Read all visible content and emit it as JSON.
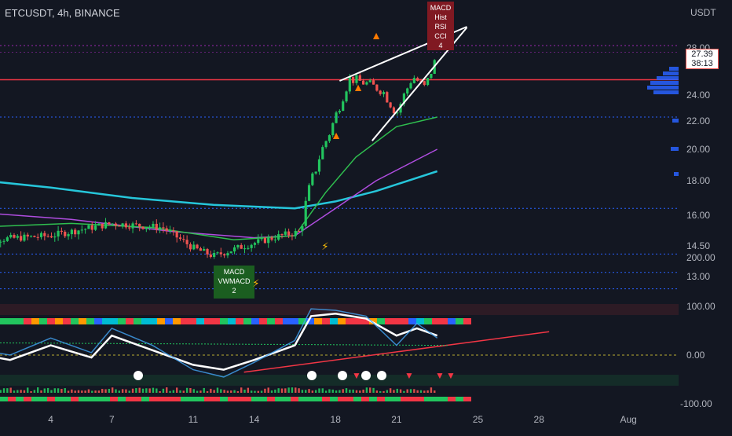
{
  "header": {
    "title": "ETCUSDT, 4h, BINANCE"
  },
  "colors": {
    "background": "#131722",
    "axis_text": "#b2b5be",
    "up": "#22c55e",
    "down": "#ef5350",
    "ema_cyan": "#26c6da",
    "ema_purple": "#b04de0",
    "ema_green": "#2fbf4f",
    "hline_red": "#f23645",
    "hline_blue": "#2962ff",
    "hline_purple": "#9c27b0",
    "wedge": "#ffffff",
    "rsi_line": "#ffffff",
    "rsi_fast": "#42a5f5"
  },
  "price_axis": {
    "currency": "USDT",
    "ticks": [
      "28.00",
      "24.00",
      "22.00",
      "20.00",
      "18.00",
      "16.00",
      "14.50",
      "13.00"
    ]
  },
  "osc_axis": {
    "ticks": [
      "200.00",
      "100.00",
      "0.00",
      "-100.00"
    ]
  },
  "time_axis": {
    "ticks": [
      "4",
      "7",
      "11",
      "14",
      "18",
      "21",
      "25",
      "28",
      "Aug"
    ]
  },
  "last_price": {
    "value": "27.39",
    "countdown": "38:13"
  },
  "annotations": {
    "top_signal": [
      "MACD",
      "Hist",
      "RSI",
      "CCI",
      "4"
    ],
    "bottom_signal": [
      "MACD",
      "VWMACD",
      "2"
    ]
  },
  "chart_data": [
    {
      "type": "candlestick",
      "title": "ETCUSDT, 4h, BINANCE",
      "ylabel": "USDT",
      "x_ticks": [
        "4",
        "7",
        "11",
        "14",
        "18",
        "21",
        "25",
        "28",
        "Aug"
      ],
      "ylim": [
        12.2,
        29.5
      ],
      "close_path": [
        [
          1,
          14.8
        ],
        [
          4,
          15.0
        ],
        [
          7,
          15.6
        ],
        [
          9.5,
          15.4
        ],
        [
          11,
          14.4
        ],
        [
          12,
          14.0
        ],
        [
          13.5,
          14.5
        ],
        [
          15.3,
          15.0
        ],
        [
          16.3,
          15.2
        ],
        [
          16.6,
          17.0
        ],
        [
          17.2,
          19.5
        ],
        [
          17.8,
          21.5
        ],
        [
          18.7,
          25.4
        ],
        [
          19.5,
          25.0
        ],
        [
          20.3,
          24.4
        ],
        [
          21,
          22.6
        ],
        [
          21.8,
          25.6
        ],
        [
          22.4,
          24.6
        ],
        [
          23,
          27.39
        ]
      ],
      "horizontal_levels": [
        {
          "value": 28.2,
          "color": "#9c27b0",
          "style": "dotted"
        },
        {
          "value": 25.3,
          "color": "#f23645",
          "style": "solid"
        },
        {
          "value": 22.3,
          "color": "#2962ff",
          "style": "dotted"
        },
        {
          "value": 16.4,
          "color": "#2962ff",
          "style": "dotted"
        },
        {
          "value": 14.1,
          "color": "#2962ff",
          "style": "dotted"
        },
        {
          "value": 13.2,
          "color": "#2962ff",
          "style": "dotted"
        },
        {
          "value": 12.4,
          "color": "#2962ff",
          "style": "dotted"
        }
      ],
      "moving_averages": [
        {
          "color": "#26c6da",
          "points": [
            [
              0,
              18.1
            ],
            [
              4,
              17.6
            ],
            [
              8,
              17.0
            ],
            [
              12,
              16.6
            ],
            [
              16,
              16.4
            ],
            [
              18,
              16.8
            ],
            [
              20,
              17.4
            ],
            [
              23,
              18.6
            ]
          ]
        },
        {
          "color": "#b04de0",
          "points": [
            [
              0,
              16.2
            ],
            [
              5,
              15.8
            ],
            [
              10,
              15.2
            ],
            [
              14,
              14.9
            ],
            [
              16,
              15.0
            ],
            [
              18,
              16.4
            ],
            [
              20,
              18.0
            ],
            [
              23,
              20.0
            ]
          ]
        },
        {
          "color": "#2fbf4f",
          "points": [
            [
              0,
              15.4
            ],
            [
              5,
              15.6
            ],
            [
              9,
              15.4
            ],
            [
              13,
              14.8
            ],
            [
              16,
              15.0
            ],
            [
              17.5,
              17.3
            ],
            [
              19,
              19.5
            ],
            [
              21,
              21.6
            ],
            [
              23,
              22.3
            ]
          ]
        }
      ],
      "wedge": {
        "upper": [
          [
            18.2,
            25.2
          ],
          [
            23.3,
            28.6
          ]
        ],
        "lower": [
          [
            19.8,
            20.6
          ],
          [
            23.3,
            27.2
          ]
        ]
      },
      "volume_profile": {
        "price_levels": [
          24.2,
          24.6,
          25.0,
          25.4,
          25.8,
          26.2,
          22.0,
          20.0,
          18.4
        ],
        "relative_volume": [
          0.8,
          1.0,
          0.9,
          0.7,
          0.5,
          0.3,
          0.2,
          0.25,
          0.15
        ]
      }
    },
    {
      "type": "line",
      "title": "",
      "ylim": [
        -125,
        210
      ],
      "y_ticks": [
        "200.00",
        "100.00",
        "0.00",
        "-100.00"
      ],
      "series": [
        {
          "color": "#ffffff",
          "points": [
            [
              0,
              5
            ],
            [
              2,
              -10
            ],
            [
              4,
              20
            ],
            [
              6,
              -5
            ],
            [
              7,
              40
            ],
            [
              9,
              10
            ],
            [
              11,
              -20
            ],
            [
              12.5,
              -30
            ],
            [
              14,
              -10
            ],
            [
              16,
              20
            ],
            [
              16.8,
              80
            ],
            [
              18,
              85
            ],
            [
              19.5,
              75
            ],
            [
              21,
              40
            ],
            [
              22,
              55
            ],
            [
              23,
              40
            ]
          ]
        },
        {
          "color": "#42a5f5",
          "points": [
            [
              0,
              15
            ],
            [
              2,
              0
            ],
            [
              4,
              35
            ],
            [
              6,
              5
            ],
            [
              7,
              55
            ],
            [
              9,
              20
            ],
            [
              11,
              -30
            ],
            [
              12.5,
              -45
            ],
            [
              14,
              -15
            ],
            [
              16,
              30
            ],
            [
              16.8,
              95
            ],
            [
              18,
              92
            ],
            [
              19.5,
              80
            ],
            [
              21,
              20
            ],
            [
              22,
              65
            ],
            [
              23,
              35
            ]
          ]
        }
      ]
    }
  ]
}
